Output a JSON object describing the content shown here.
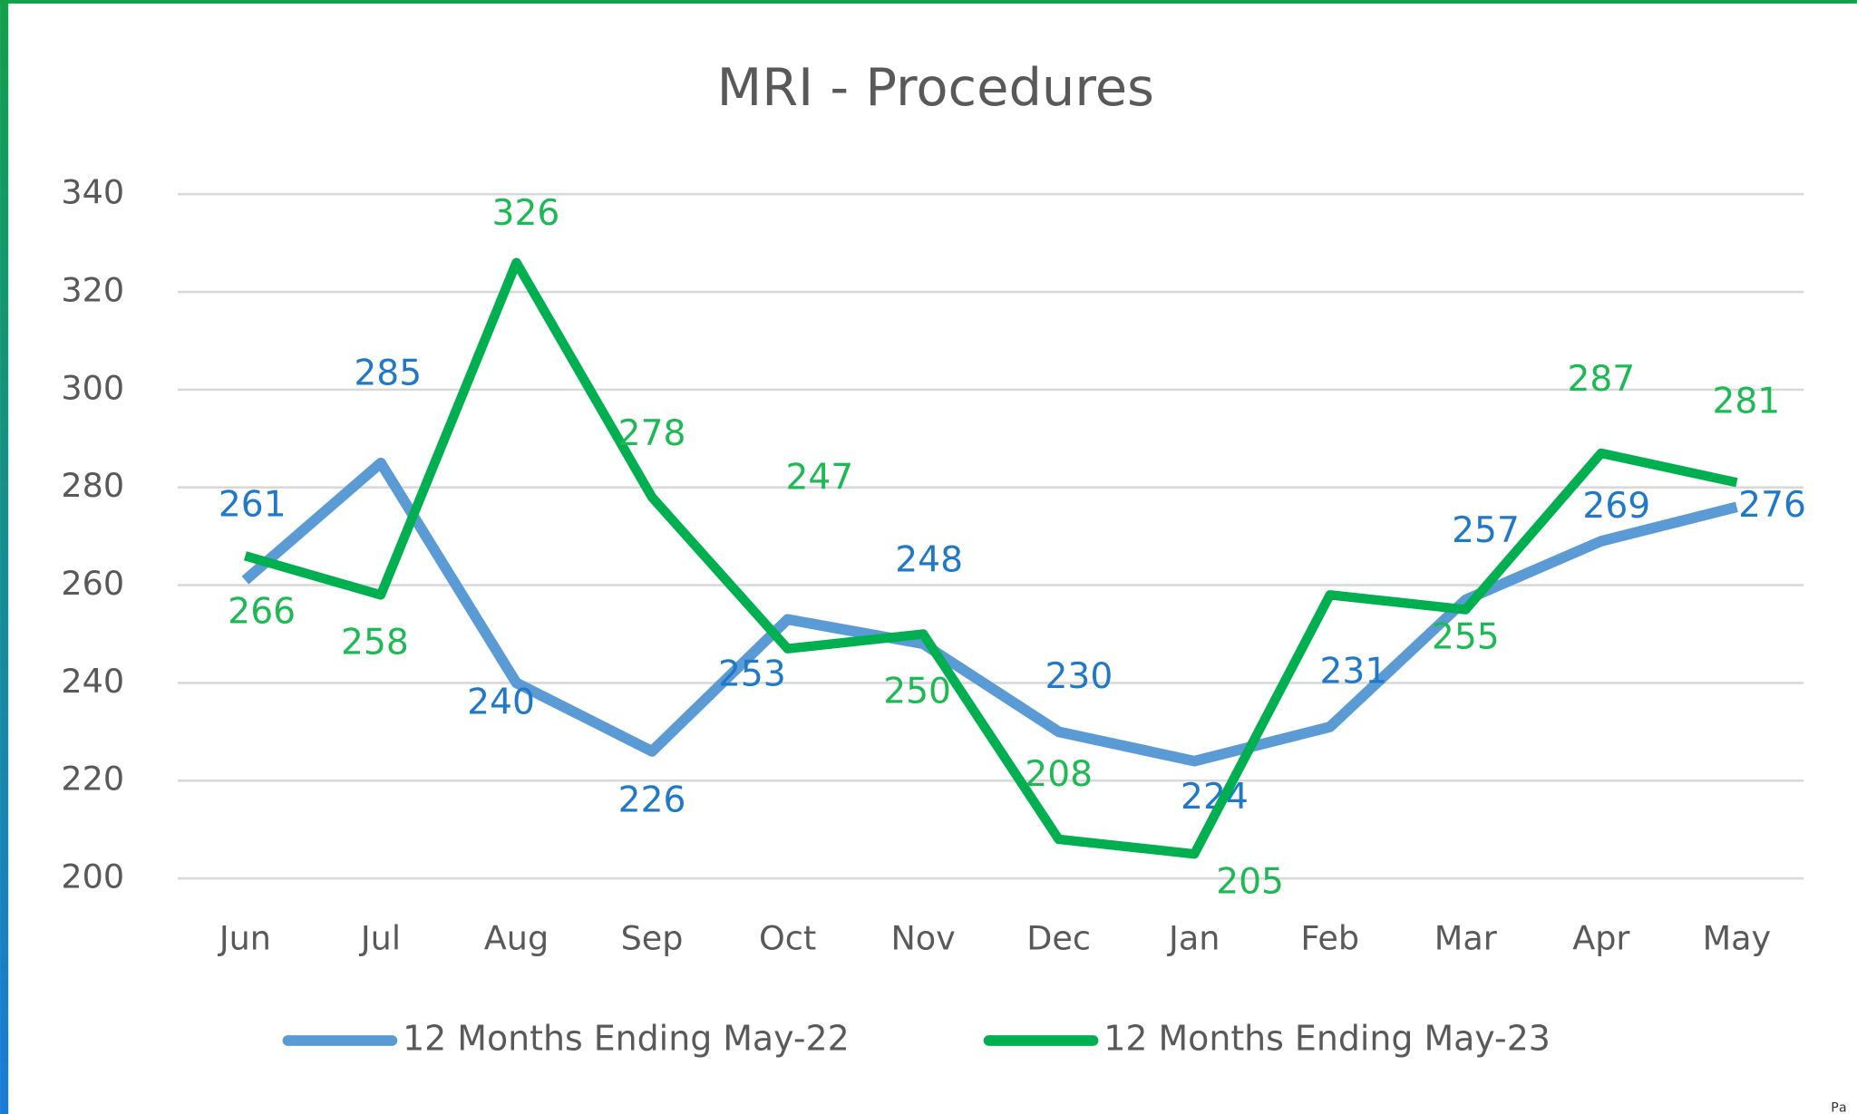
{
  "chart_data": {
    "type": "line",
    "title": "MRI - Procedures",
    "categories": [
      "Jun",
      "Jul",
      "Aug",
      "Sep",
      "Oct",
      "Nov",
      "Dec",
      "Jan",
      "Feb",
      "Mar",
      "Apr",
      "May"
    ],
    "series": [
      {
        "name": "12 Months Ending May-22",
        "color": "#5b9bd5",
        "label_color": "#1f78c8",
        "values": [
          261,
          285,
          240,
          226,
          253,
          248,
          230,
          224,
          231,
          257,
          269,
          276
        ]
      },
      {
        "name": "12 Months Ending May-23",
        "color": "#00b050",
        "label_color": "#1db954",
        "values": [
          266,
          258,
          326,
          278,
          247,
          250,
          208,
          205,
          258,
          255,
          287,
          281
        ]
      }
    ],
    "ylim": [
      200,
      340
    ],
    "yticks": [
      200,
      220,
      240,
      260,
      280,
      300,
      320,
      340
    ],
    "grid": true,
    "legend": "bottom",
    "footer_text": "Pa"
  }
}
